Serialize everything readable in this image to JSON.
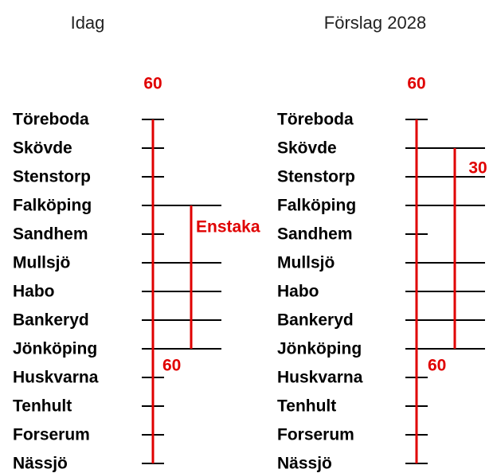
{
  "panels": [
    {
      "heading": "Idag",
      "top_label": "60",
      "branch_label": "Enstaka",
      "bottom_label": "60",
      "stations": [
        "Töreboda",
        "Skövde",
        "Stenstorp",
        "Falköping",
        "Sandhem",
        "Mullsjö",
        "Habo",
        "Bankeryd",
        "Jönköping",
        "Huskvarna",
        "Tenhult",
        "Forserum",
        "Nässjö"
      ]
    },
    {
      "heading": "Förslag 2028",
      "top_label": "60",
      "branch_label": "30",
      "bottom_label": "60",
      "stations": [
        "Töreboda",
        "Skövde",
        "Stenstorp",
        "Falköping",
        "Sandhem",
        "Mullsjö",
        "Habo",
        "Bankeryd",
        "Jönköping",
        "Huskvarna",
        "Tenhult",
        "Forserum",
        "Nässjö"
      ]
    }
  ]
}
